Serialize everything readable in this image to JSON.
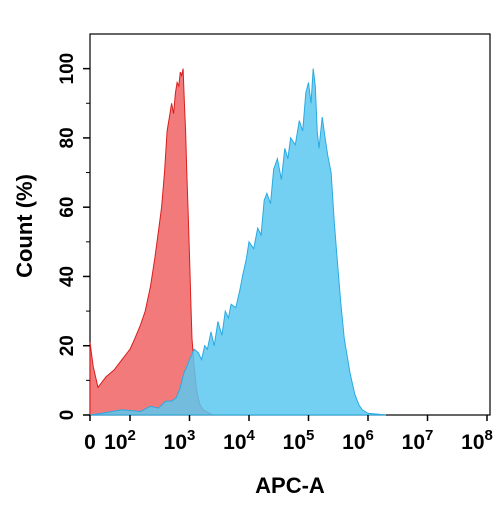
{
  "chart_data": {
    "type": "area",
    "title": "",
    "xlabel": "APC-A",
    "ylabel": "Count (%)",
    "x_scale": "biexponential",
    "xlim": [
      0,
      100000000
    ],
    "ylim": [
      0,
      110
    ],
    "x_ticks": [
      {
        "value": 0,
        "base": "0",
        "exp": ""
      },
      {
        "value": 100,
        "base": "10",
        "exp": "2"
      },
      {
        "value": 1000,
        "base": "10",
        "exp": "3"
      },
      {
        "value": 10000,
        "base": "10",
        "exp": "4"
      },
      {
        "value": 100000,
        "base": "10",
        "exp": "5"
      },
      {
        "value": 1000000,
        "base": "10",
        "exp": "6"
      },
      {
        "value": 10000000,
        "base": "10",
        "exp": "7"
      },
      {
        "value": 100000000,
        "base": "10",
        "exp": "8"
      }
    ],
    "y_ticks": [
      0,
      20,
      40,
      60,
      80,
      100
    ],
    "grid": false,
    "series": [
      {
        "color": "#f26b6b",
        "stroke": "#d81e1e",
        "opacity": 0.9,
        "x": [
          0,
          8,
          20,
          40,
          60,
          80,
          100,
          120,
          150,
          180,
          220,
          260,
          300,
          340,
          380,
          420,
          460,
          500,
          540,
          580,
          620,
          660,
          700,
          740,
          780,
          820,
          860,
          900,
          950,
          1000,
          1050,
          1100,
          1200,
          1300,
          1400,
          1500,
          1700,
          2000,
          2500
        ],
        "y": [
          21,
          14,
          8,
          11,
          13,
          16,
          19,
          22,
          26,
          30,
          37,
          45,
          53,
          60,
          70,
          82,
          86,
          90,
          87,
          93,
          96,
          95,
          99,
          98,
          100,
          90,
          82,
          70,
          58,
          46,
          33,
          22,
          14,
          8,
          5,
          3,
          1.5,
          0.8,
          0
        ]
      },
      {
        "color": "#5cc8f0",
        "stroke": "#2aaae0",
        "opacity": 0.85,
        "x": [
          0,
          30,
          80,
          150,
          220,
          300,
          400,
          500,
          600,
          700,
          800,
          900,
          1000,
          1200,
          1400,
          1600,
          1800,
          2000,
          2300,
          2600,
          3000,
          3500,
          4000,
          4500,
          5000,
          6000,
          7000,
          8000,
          9000,
          10000,
          12000,
          14000,
          16000,
          18000,
          20000,
          23000,
          26000,
          30000,
          35000,
          40000,
          45000,
          50000,
          60000,
          70000,
          80000,
          90000,
          100000,
          110000,
          120000,
          130000,
          140000,
          150000,
          170000,
          190000,
          210000,
          240000,
          270000,
          300000,
          350000,
          400000,
          500000,
          600000,
          700000,
          800000,
          1000000,
          1500000,
          2000000
        ],
        "y": [
          0,
          0.5,
          1.5,
          1,
          2.5,
          2,
          4,
          4,
          5,
          8,
          12,
          14,
          16,
          19,
          18,
          16,
          20,
          19,
          24,
          20,
          27,
          23,
          30,
          28,
          32,
          31,
          36,
          41,
          45,
          50,
          48,
          54,
          52,
          62,
          64,
          61,
          71,
          74,
          68,
          77,
          74,
          80,
          78,
          85,
          82,
          93,
          96,
          90,
          100,
          95,
          82,
          77,
          86,
          80,
          75,
          70,
          56,
          46,
          32,
          22,
          12,
          6,
          3,
          1.5,
          0.5,
          0.2,
          0
        ]
      }
    ]
  }
}
